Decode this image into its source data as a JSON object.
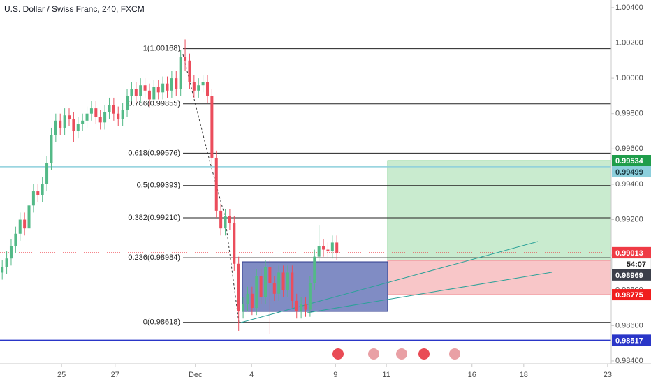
{
  "chart_data": {
    "type": "candlestick",
    "title": "U.S. Dollar / Swiss Franc, 240, FXCM",
    "up_color": "#53b987",
    "down_color": "#eb4d5c",
    "open": [
      0.989,
      0.9893,
      0.9898,
      0.9905,
      0.9912,
      0.992,
      0.9915,
      0.9928,
      0.9936,
      0.9934,
      0.994,
      0.9952,
      0.9968,
      0.9976,
      0.9972,
      0.9979,
      0.9977,
      0.997,
      0.9974,
      0.9976,
      0.998,
      0.9983,
      0.9978,
      0.9975,
      0.9981,
      0.9985,
      0.998,
      0.9977,
      0.9982,
      0.999,
      0.9994,
      0.999,
      0.9996,
      0.9993,
      0.9988,
      0.9995,
      0.9992,
      0.9997,
      0.9993,
      1.0,
      0.9994,
      1.0012,
      1.001,
      0.9998,
      0.9993,
      0.9996,
      0.9998,
      0.999,
      0.9955,
      0.9925,
      0.9915,
      0.9922,
      0.9918,
      0.9895,
      0.9868,
      0.9872,
      0.9878,
      0.987,
      0.9888,
      0.9876,
      0.9893,
      0.9884,
      0.9878,
      0.989,
      0.988,
      0.989,
      0.9874,
      0.9868,
      0.9872,
      0.9869,
      0.9884,
      0.9899,
      0.9905,
      0.9903,
      0.9902,
      0.9907
    ],
    "high": [
      0.9897,
      0.9902,
      0.9909,
      0.9916,
      0.9924,
      0.9924,
      0.9932,
      0.994,
      0.994,
      0.9944,
      0.9956,
      0.9972,
      0.998,
      0.998,
      0.9983,
      0.9983,
      0.9981,
      0.9978,
      0.998,
      0.9984,
      0.9987,
      0.9987,
      0.9982,
      0.9985,
      0.9989,
      0.9989,
      0.9984,
      0.9986,
      0.9994,
      0.9998,
      0.9998,
      1.0,
      1.0,
      0.9997,
      0.9999,
      0.9999,
      1.0001,
      1.0001,
      1.0004,
      1.0004,
      1.0016,
      1.0022,
      1.0014,
      1.0002,
      1.0,
      1.0002,
      1.0002,
      0.9994,
      0.9959,
      0.9929,
      0.9926,
      0.9926,
      0.9922,
      0.9899,
      0.9876,
      0.9882,
      0.9882,
      0.9892,
      0.9892,
      0.9897,
      0.9897,
      0.9888,
      0.9894,
      0.9894,
      0.9894,
      0.9894,
      0.9878,
      0.9876,
      0.9876,
      0.9888,
      0.9903,
      0.9917,
      0.9909,
      0.9907,
      0.9911,
      0.9911
    ],
    "low": [
      0.9886,
      0.9889,
      0.9894,
      0.9901,
      0.9908,
      0.9911,
      0.9911,
      0.9924,
      0.993,
      0.993,
      0.9936,
      0.9948,
      0.9964,
      0.9968,
      0.9968,
      0.9973,
      0.9964,
      0.9966,
      0.997,
      0.9972,
      0.9976,
      0.9974,
      0.9971,
      0.9971,
      0.9977,
      0.9976,
      0.9973,
      0.9973,
      0.9978,
      0.9986,
      0.9986,
      0.9986,
      0.9989,
      0.9984,
      0.9984,
      0.9988,
      0.9988,
      0.9989,
      0.9989,
      0.999,
      0.999,
      1.0004,
      0.9994,
      0.9989,
      0.9989,
      0.9992,
      0.9986,
      0.9951,
      0.9921,
      0.9911,
      0.9911,
      0.9914,
      0.9891,
      0.9857,
      0.9864,
      0.9868,
      0.9866,
      0.9866,
      0.9872,
      0.9872,
      0.9855,
      0.9874,
      0.9874,
      0.9876,
      0.9876,
      0.987,
      0.9864,
      0.9864,
      0.9865,
      0.9865,
      0.988,
      0.9895,
      0.9899,
      0.9898,
      0.9898,
      0.9897
    ],
    "close": [
      0.9893,
      0.9898,
      0.9905,
      0.9912,
      0.992,
      0.9915,
      0.9928,
      0.9936,
      0.9934,
      0.994,
      0.9952,
      0.9968,
      0.9976,
      0.9972,
      0.9979,
      0.9977,
      0.997,
      0.9974,
      0.9976,
      0.998,
      0.9983,
      0.9978,
      0.9975,
      0.9981,
      0.9985,
      0.998,
      0.9977,
      0.9982,
      0.999,
      0.9994,
      0.999,
      0.9996,
      0.9993,
      0.9988,
      0.9995,
      0.9992,
      0.9997,
      0.9993,
      1.0,
      0.9994,
      1.0012,
      1.001,
      0.9998,
      0.9993,
      0.9996,
      0.9998,
      0.999,
      0.9955,
      0.9925,
      0.9915,
      0.9922,
      0.9918,
      0.9895,
      0.9868,
      0.9872,
      0.9878,
      0.987,
      0.9888,
      0.9876,
      0.9893,
      0.9884,
      0.9878,
      0.989,
      0.988,
      0.989,
      0.9874,
      0.9868,
      0.9872,
      0.9869,
      0.9884,
      0.9899,
      0.9905,
      0.9903,
      0.9902,
      0.9907,
      0.99013
    ],
    "xlim": [
      -0.5,
      136.5
    ],
    "xticks": [
      {
        "value": 13.3,
        "label": "25"
      },
      {
        "value": 25.3,
        "label": "27"
      },
      {
        "value": 43.3,
        "label": "Dec"
      },
      {
        "value": 55.9,
        "label": "4"
      },
      {
        "value": 74.7,
        "label": "9"
      },
      {
        "value": 86.1,
        "label": "11"
      },
      {
        "value": 105.3,
        "label": "16"
      },
      {
        "value": 116.9,
        "label": "18"
      },
      {
        "value": 135.7,
        "label": "23"
      }
    ],
    "ylim": [
      0.98388,
      1.00443
    ],
    "yticks": [
      {
        "value": 1.004,
        "label": "1.00400"
      },
      {
        "value": 1.002,
        "label": "1.00200"
      },
      {
        "value": 1.0,
        "label": "1.00000"
      },
      {
        "value": 0.998,
        "label": "0.99800"
      },
      {
        "value": 0.996,
        "label": "0.99600"
      },
      {
        "value": 0.994,
        "label": "0.99400"
      },
      {
        "value": 0.992,
        "label": "0.99200"
      },
      {
        "value": 0.99,
        "label": "0.99000"
      },
      {
        "value": 0.988,
        "label": "0.98800"
      },
      {
        "value": 0.986,
        "label": "0.98600"
      },
      {
        "value": 0.984,
        "label": "0.98400"
      }
    ],
    "fibonacci": [
      {
        "value": 1.00168,
        "label": "1(1.00168)"
      },
      {
        "value": 0.99855,
        "label": "0.786(0.99855)"
      },
      {
        "value": 0.99576,
        "label": "0.618(0.99576)"
      },
      {
        "value": 0.99393,
        "label": "0.5(0.99393)"
      },
      {
        "value": 0.9921,
        "label": "0.382(0.99210)"
      },
      {
        "value": 0.98984,
        "label": "0.236(0.98984)"
      },
      {
        "value": 0.98618,
        "label": "0(0.98618)"
      }
    ],
    "price_labels": [
      {
        "value": 0.99534,
        "label": "0.99534",
        "color": "#1f9d4b",
        "role": "target"
      },
      {
        "value": 0.99499,
        "label": "0.99499",
        "color": "#8ccfdc",
        "line": "solid"
      },
      {
        "value": 0.99013,
        "label": "0.99013",
        "color": "#ef3b45",
        "line": "dotted"
      },
      {
        "value": 0.98969,
        "label": "0.98969",
        "color": "#3c3f4a",
        "role": "entry"
      },
      {
        "value": 0.98775,
        "label": "0.98775",
        "color": "#f01d1d",
        "role": "stop"
      },
      {
        "value": 0.98517,
        "label": "0.98517",
        "color": "#2a36c8",
        "line": "solid"
      }
    ],
    "countdown": "54:07"
  }
}
